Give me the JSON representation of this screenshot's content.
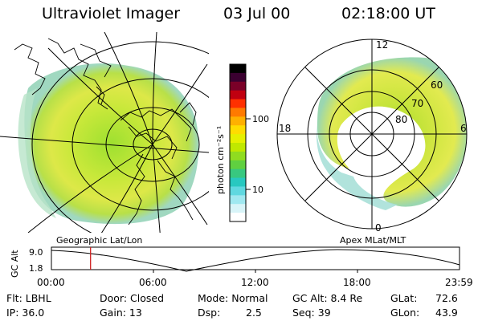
{
  "header": {
    "instrument": "Ultraviolet Imager",
    "date": "03 Jul 00",
    "time": "02:18:00 UT"
  },
  "left_panel": {
    "label": "Geographic Lat/Lon"
  },
  "right_panel": {
    "label": "Apex MLat/MLT",
    "mlt_labels": {
      "top": "12",
      "left": "18",
      "right": "6",
      "bottom": "0"
    },
    "lat_labels": [
      "60",
      "70",
      "80"
    ]
  },
  "colorbar": {
    "unit_label": "photon cm⁻²s⁻¹",
    "ticks": [
      "100",
      "10"
    ],
    "colors": [
      "#000000",
      "#3a0030",
      "#7a0028",
      "#c00010",
      "#ff3000",
      "#ff7a00",
      "#ffb000",
      "#ffdc00",
      "#e6f000",
      "#c0e800",
      "#90dc20",
      "#60d040",
      "#38c880",
      "#28c8c0",
      "#60d8e0",
      "#a0e8f0",
      "#d8f4f8",
      "#ffffff"
    ]
  },
  "timeline": {
    "axis_label": "GC Alt",
    "y_ticks": [
      "9.0",
      "1.8"
    ],
    "x_ticks": [
      "00:00",
      "06:00",
      "12:00",
      "18:00",
      "23:59"
    ],
    "marker_time": "02:18"
  },
  "info": {
    "row1": {
      "filter": "Flt: LBHL",
      "door": "Door: Closed",
      "mode": "Mode: Normal",
      "gc_alt": "GC Alt: 8.4 Re",
      "glat_label": "GLat:",
      "glat_value": "72.6"
    },
    "row2": {
      "ip": "IP: 36.0",
      "gain": "Gain: 13",
      "dsp_label": "Dsp:",
      "dsp_value": "2.5",
      "seq": "Seq: 39",
      "glon_label": "GLon:",
      "glon_value": "43.9"
    }
  }
}
